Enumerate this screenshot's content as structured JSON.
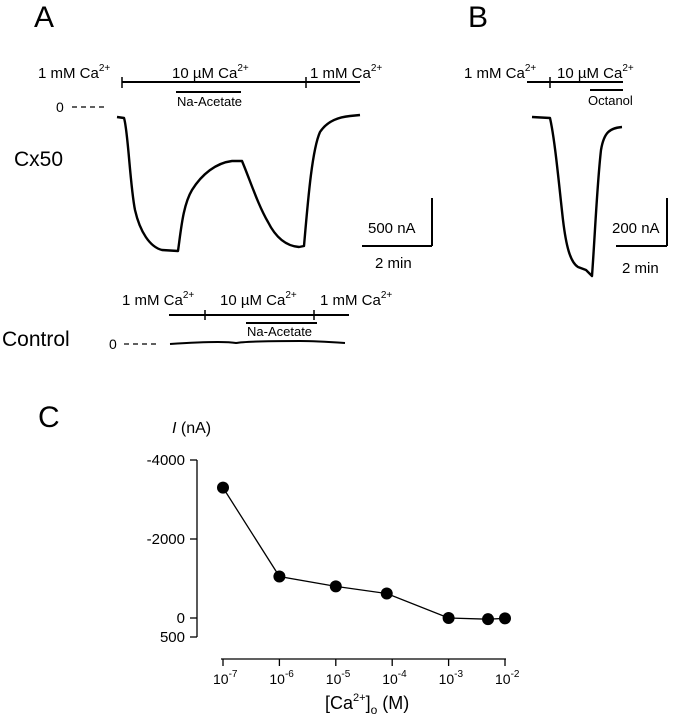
{
  "panels": {
    "A": {
      "letter": "A",
      "cx50": {
        "row_label": "Cx50",
        "zero_label": "0",
        "solution_left": "1 mM Ca",
        "solution_mid": "10 µM Ca",
        "solution_right": "1 mM Ca",
        "superscript": "2+",
        "drug": "Na-Acetate",
        "scale_current": "500 nA",
        "scale_time": "2 min"
      },
      "control": {
        "row_label": "Control",
        "zero_label": "0",
        "solution_left": "1 mM Ca",
        "solution_mid": "10 µM Ca",
        "solution_right": "1 mM Ca",
        "superscript": "2+",
        "drug": "Na-Acetate"
      }
    },
    "B": {
      "letter": "B",
      "solution_left": "1 mM Ca",
      "solution_mid": "10 µM Ca",
      "superscript": "2+",
      "drug": "Octanol",
      "scale_current": "200 nA",
      "scale_time": "2 min"
    },
    "C": {
      "letter": "C",
      "ylabel_italic": "I",
      "ylabel_unit": " (nA)",
      "xlabel_parts": [
        "[Ca",
        "2+",
        "]",
        "o",
        " (M)"
      ]
    }
  },
  "chart_data": {
    "type": "scatter",
    "x": [
      1e-07,
      1e-06,
      1e-05,
      8e-05,
      0.001,
      0.005,
      0.01
    ],
    "y": [
      -3300,
      -1050,
      -800,
      -620,
      0,
      30,
      10
    ],
    "xscale": "log",
    "xlim": [
      1e-07,
      0.01
    ],
    "xticks": [
      {
        "base": "10",
        "exp": "-7"
      },
      {
        "base": "10",
        "exp": "-6"
      },
      {
        "base": "10",
        "exp": "-5"
      },
      {
        "base": "10",
        "exp": "-4"
      },
      {
        "base": "10",
        "exp": "-3"
      },
      {
        "base": "10",
        "exp": "-2"
      }
    ],
    "yticks": [
      "-4000",
      "-2000",
      "0",
      "500"
    ],
    "ytick_values": [
      -4000,
      -2000,
      0,
      500
    ],
    "ylim": [
      -4000,
      500
    ],
    "y_inverted": true,
    "connected": true,
    "grid": false
  }
}
